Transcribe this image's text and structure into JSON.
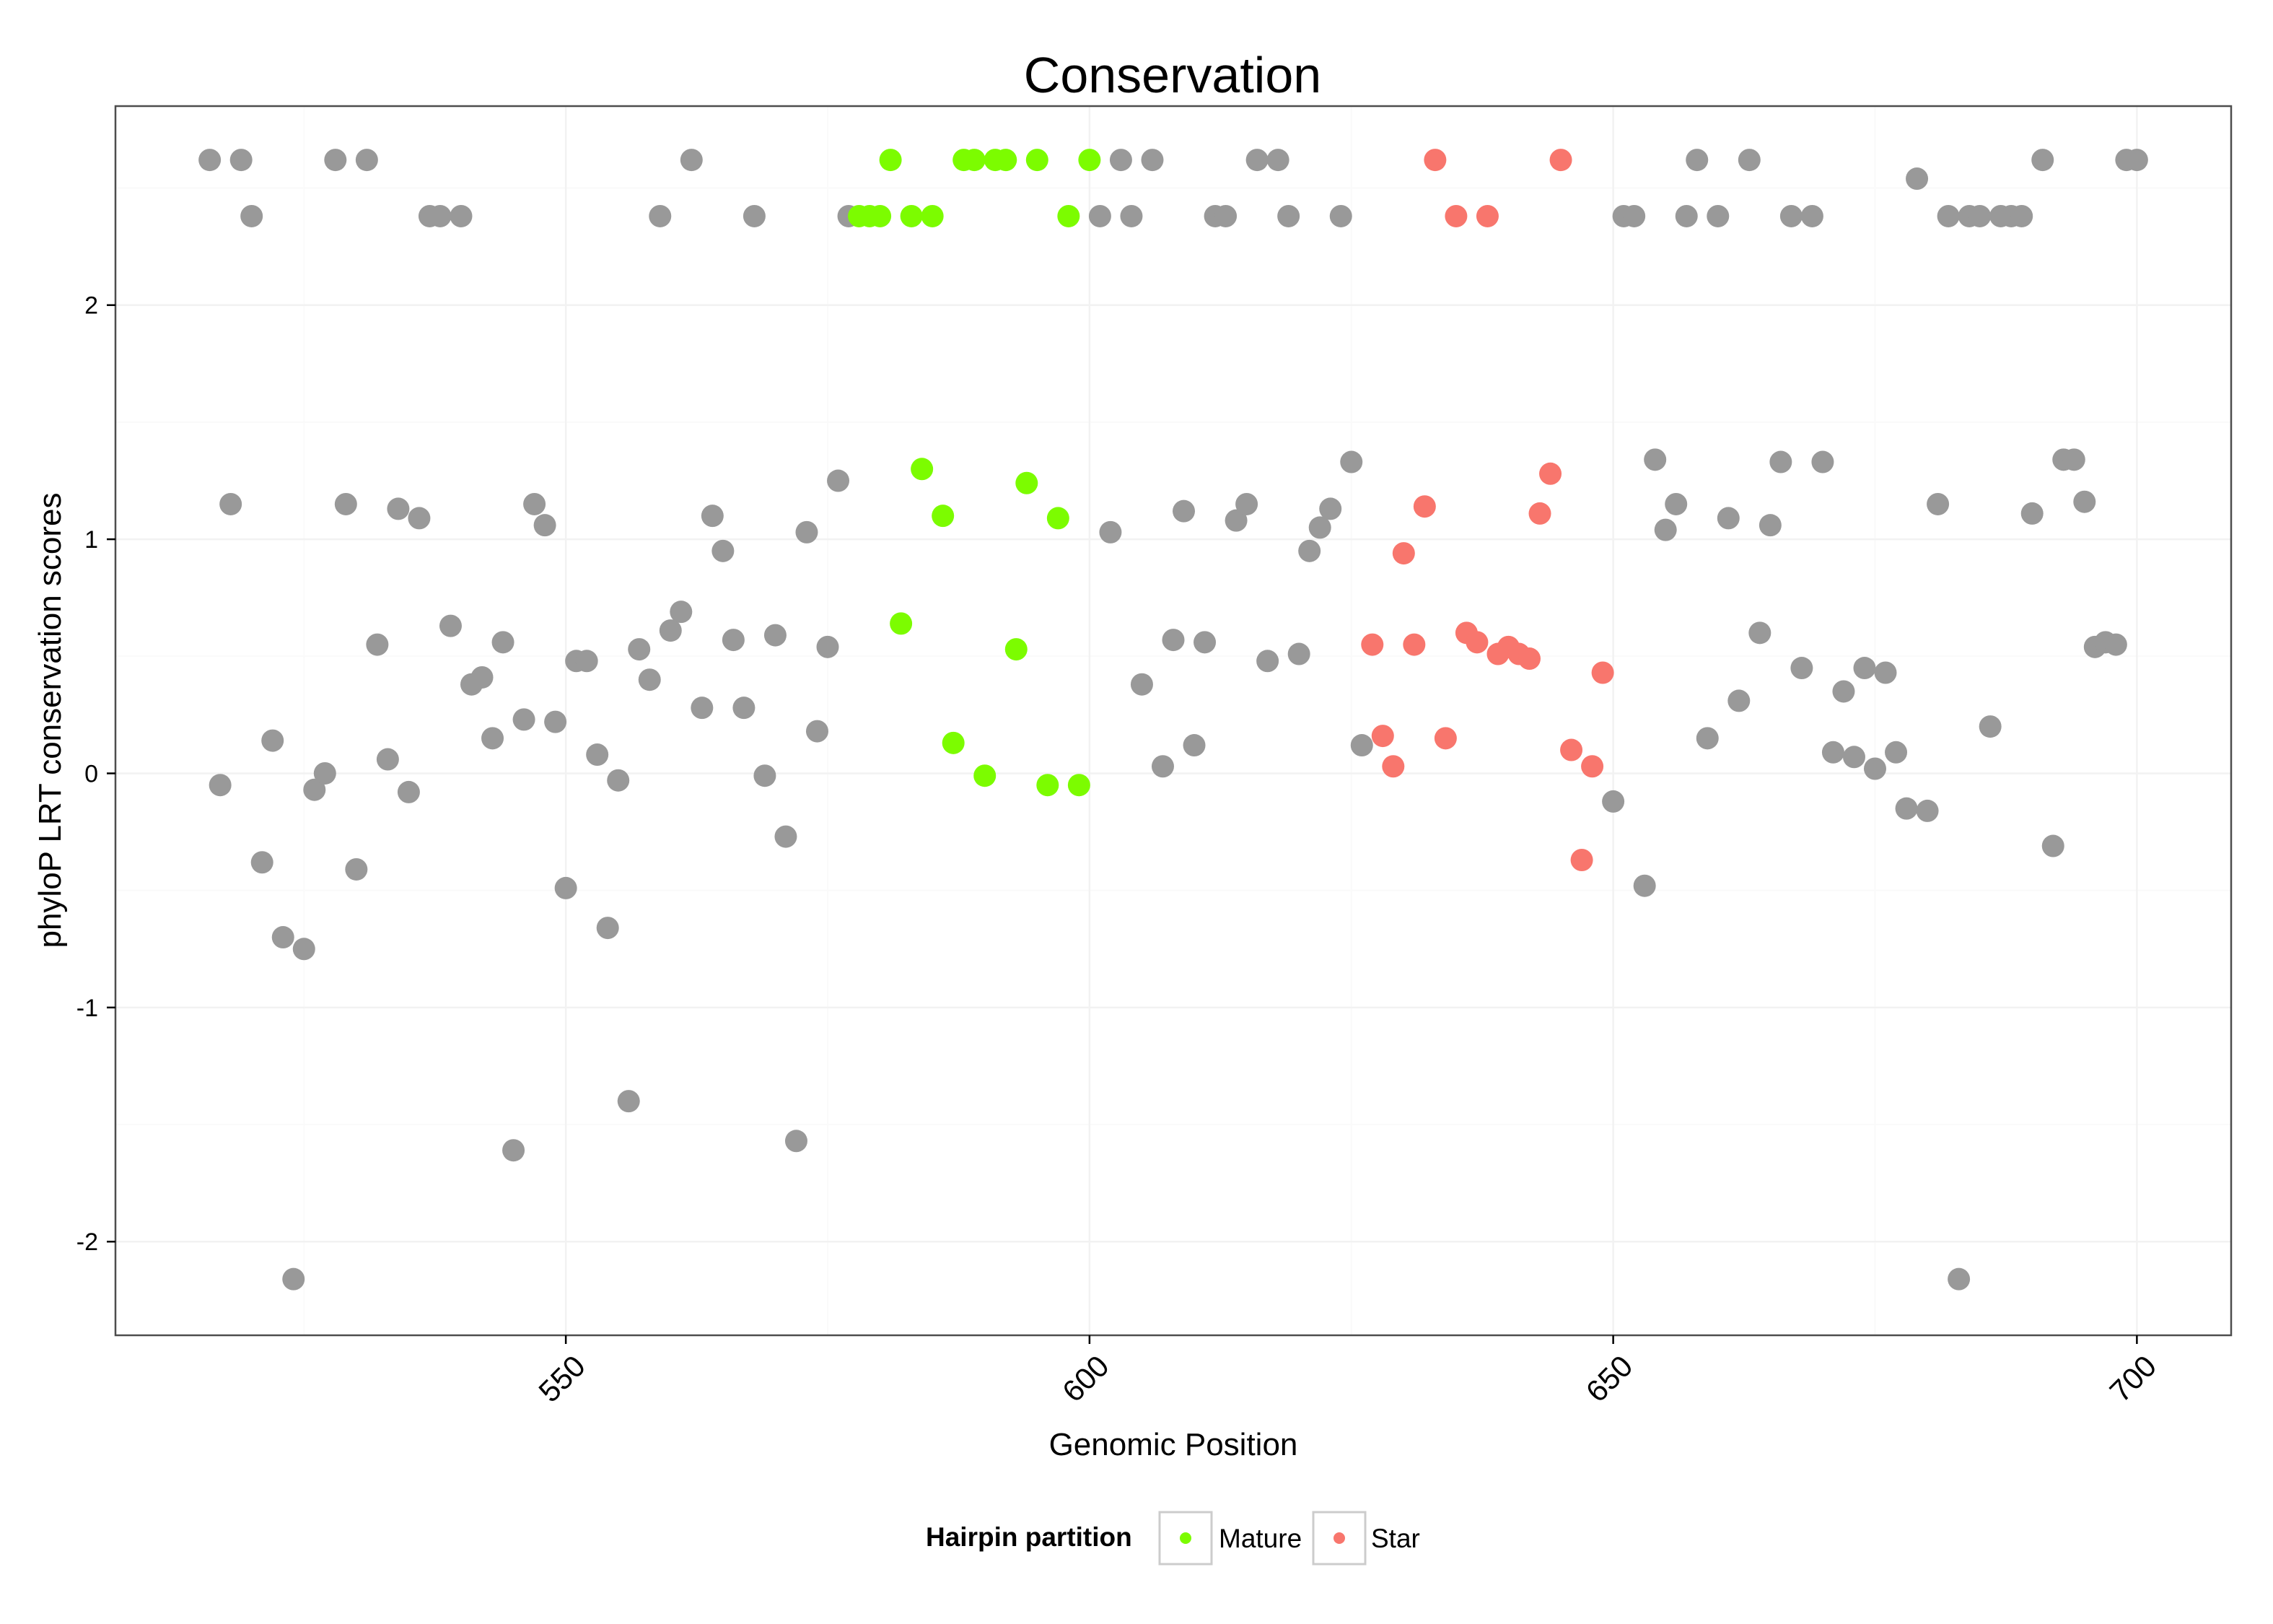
{
  "chart_data": {
    "type": "scatter",
    "title": "Conservation",
    "xlabel": "Genomic Position",
    "ylabel": "phyloP LRT conservation scores",
    "xlim": [
      507,
      709
    ],
    "ylim": [
      -2.4,
      2.85
    ],
    "x_ticks": [
      550,
      600,
      650,
      700
    ],
    "y_ticks": [
      -2,
      -1,
      0,
      1,
      2
    ],
    "x_tick_labels": [
      "550",
      "600",
      "650",
      "700"
    ],
    "y_tick_labels": [
      "-2",
      "-1",
      "0",
      "1",
      "2"
    ],
    "grid": true,
    "legend": {
      "title": "Hairpin partition",
      "placement": "bottom",
      "entries": [
        {
          "key": "mature",
          "label": "Mature",
          "color": "#7CFC00"
        },
        {
          "key": "star",
          "label": "Star",
          "color": "#F8766D"
        }
      ]
    },
    "colors": {
      "other": "#999999",
      "mature": "#7CFC00",
      "star": "#F8766D"
    },
    "series": [
      {
        "key": "other",
        "x": [
          516,
          517,
          518,
          519,
          520,
          521,
          522,
          523,
          524,
          525,
          526,
          527,
          528,
          529,
          530,
          531,
          532,
          533,
          534,
          535,
          536,
          537,
          538,
          539,
          540,
          541,
          542,
          543,
          544,
          545,
          546,
          547,
          548,
          549,
          550,
          551,
          552,
          553,
          554,
          555,
          556,
          557,
          558,
          559,
          560,
          561,
          562,
          563,
          564,
          565,
          566,
          567,
          568,
          569,
          570,
          571,
          572,
          573,
          574,
          575,
          576,
          577,
          601,
          602,
          603,
          604,
          605,
          606,
          607,
          608,
          609,
          610,
          611,
          612,
          613,
          614,
          615,
          616,
          617,
          618,
          619,
          620,
          621,
          622,
          623,
          624,
          625,
          626,
          650,
          651,
          652,
          653,
          654,
          655,
          656,
          657,
          658,
          659,
          660,
          661,
          662,
          663,
          664,
          665,
          666,
          667,
          668,
          669,
          670,
          671,
          672,
          673,
          674,
          675,
          676,
          677,
          678,
          679,
          680,
          681,
          682,
          683,
          684,
          685,
          686,
          687,
          688,
          689,
          690,
          691,
          692,
          693,
          694,
          695,
          696,
          697,
          698,
          699,
          700
        ],
        "y": [
          2.62,
          -0.05,
          1.15,
          2.62,
          2.38,
          -0.38,
          0.14,
          -0.7,
          -2.16,
          -0.75,
          -0.07,
          0,
          2.62,
          1.15,
          -0.41,
          2.62,
          0.55,
          0.06,
          1.13,
          -0.08,
          1.09,
          2.38,
          2.38,
          0.63,
          2.38,
          0.38,
          0.41,
          0.15,
          0.56,
          -1.61,
          0.23,
          1.15,
          1.06,
          0.22,
          -0.49,
          0.48,
          0.48,
          0.08,
          -0.66,
          -0.03,
          -1.4,
          0.53,
          0.4,
          2.38,
          0.61,
          0.69,
          2.62,
          0.28,
          1.1,
          0.95,
          0.57,
          0.28,
          2.38,
          -0.01,
          0.59,
          -0.27,
          -1.57,
          1.03,
          0.18,
          0.54,
          1.25,
          2.38,
          2.38,
          1.03,
          2.62,
          2.38,
          0.38,
          2.62,
          0.03,
          0.57,
          1.12,
          0.12,
          0.56,
          2.38,
          2.38,
          1.08,
          1.15,
          2.62,
          0.48,
          2.62,
          2.38,
          0.51,
          0.95,
          1.05,
          1.13,
          2.38,
          1.33,
          0.12,
          -0.12,
          2.38,
          2.38,
          -0.48,
          1.34,
          1.04,
          1.15,
          2.38,
          2.62,
          0.15,
          2.38,
          1.09,
          0.31,
          2.62,
          0.6,
          1.06,
          1.33,
          2.38,
          0.45,
          2.38,
          1.33,
          0.09,
          0.35,
          0.07,
          0.45,
          0.02,
          0.43,
          0.09,
          -0.15,
          2.54,
          -0.16,
          1.15,
          2.38,
          -2.16,
          2.38,
          2.38,
          0.2,
          2.38,
          2.38,
          2.38,
          1.11,
          2.62,
          -0.31,
          1.34,
          1.34,
          1.16,
          0.54,
          0.56,
          0.55,
          2.62,
          2.62
        ]
      },
      {
        "key": "mature",
        "name": "Mature",
        "x": [
          578,
          579,
          580,
          581,
          582,
          583,
          584,
          585,
          586,
          587,
          588,
          589,
          590,
          591,
          592,
          593,
          594,
          595,
          596,
          597,
          598,
          599,
          600
        ],
        "y": [
          2.38,
          2.38,
          2.38,
          2.62,
          0.64,
          2.38,
          1.3,
          2.38,
          1.1,
          0.13,
          2.62,
          2.62,
          -0.01,
          2.62,
          2.62,
          0.53,
          1.24,
          2.62,
          -0.05,
          1.09,
          2.38,
          -0.05,
          2.62
        ]
      },
      {
        "key": "star",
        "name": "Star",
        "x": [
          627,
          628,
          629,
          630,
          631,
          632,
          633,
          634,
          635,
          636,
          637,
          638,
          639,
          640,
          641,
          642,
          643,
          644,
          645,
          646,
          647,
          648,
          649
        ],
        "y": [
          0.55,
          0.16,
          0.03,
          0.94,
          0.55,
          1.14,
          2.62,
          0.15,
          2.38,
          0.6,
          0.56,
          2.38,
          0.51,
          0.54,
          0.51,
          0.49,
          1.11,
          1.28,
          2.62,
          0.1,
          -0.37,
          0.03,
          0.43
        ]
      }
    ]
  }
}
